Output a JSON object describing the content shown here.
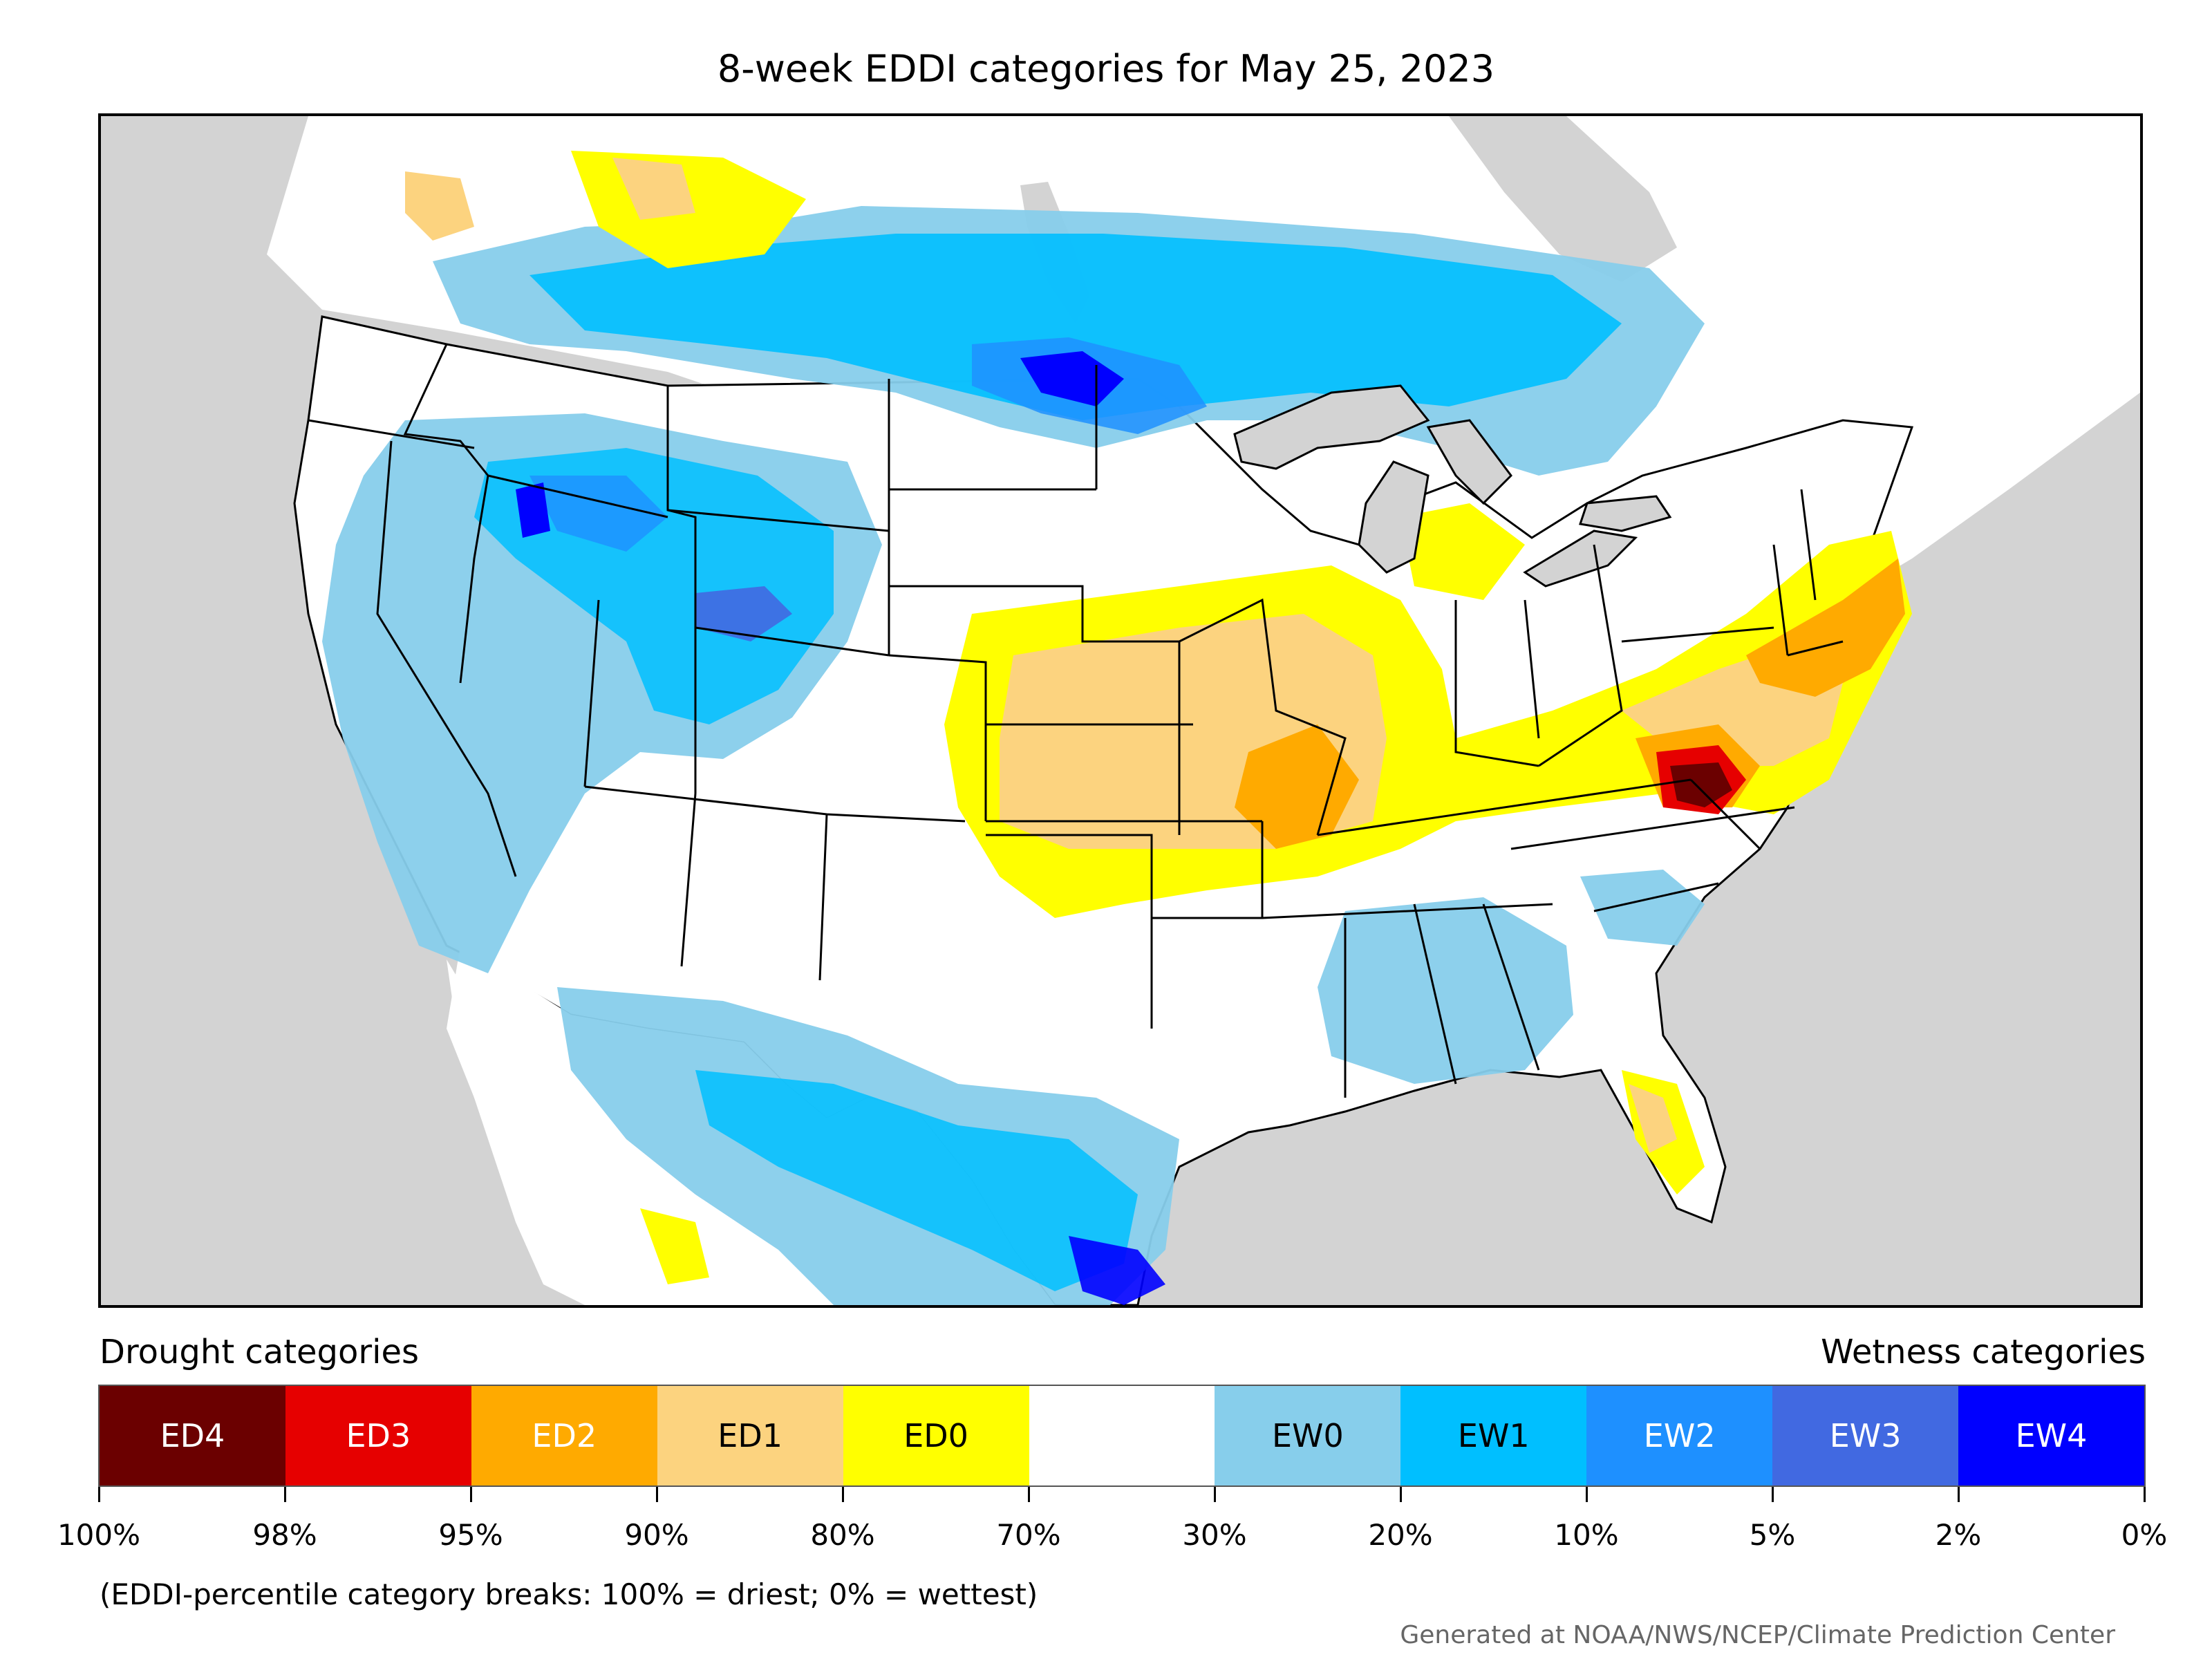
{
  "title": "8-week EDDI categories for May 25, 2023",
  "map": {
    "background_color": "#d3d3d3",
    "land_color": "#ffffff",
    "border_color": "#000000"
  },
  "legend": {
    "drought_caption": "Drought categories",
    "wetness_caption": "Wetness categories",
    "categories": [
      {
        "label": "ED4",
        "color": "#6b0000",
        "text_color": "#ffffff"
      },
      {
        "label": "ED3",
        "color": "#e60000",
        "text_color": "#ffffff"
      },
      {
        "label": "ED2",
        "color": "#ffaa00",
        "text_color": "#ffffff"
      },
      {
        "label": "ED1",
        "color": "#fcd37f",
        "text_color": "#000000"
      },
      {
        "label": "ED0",
        "color": "#ffff00",
        "text_color": "#000000"
      },
      {
        "label": "",
        "color": "#ffffff",
        "text_color": "#000000"
      },
      {
        "label": "EW0",
        "color": "#87ceeb",
        "text_color": "#000000"
      },
      {
        "label": "EW1",
        "color": "#00bfff",
        "text_color": "#000000"
      },
      {
        "label": "EW2",
        "color": "#1e90ff",
        "text_color": "#ffffff"
      },
      {
        "label": "EW3",
        "color": "#4169e1",
        "text_color": "#ffffff"
      },
      {
        "label": "EW4",
        "color": "#0000ff",
        "text_color": "#ffffff"
      }
    ],
    "ticks": [
      "100%",
      "98%",
      "95%",
      "90%",
      "80%",
      "70%",
      "30%",
      "20%",
      "10%",
      "5%",
      "2%",
      "0%"
    ]
  },
  "footnote": "(EDDI-percentile category breaks: 100% = driest; 0% = wettest)",
  "credit": "Generated at NOAA/NWS/NCEP/Climate Prediction Center"
}
